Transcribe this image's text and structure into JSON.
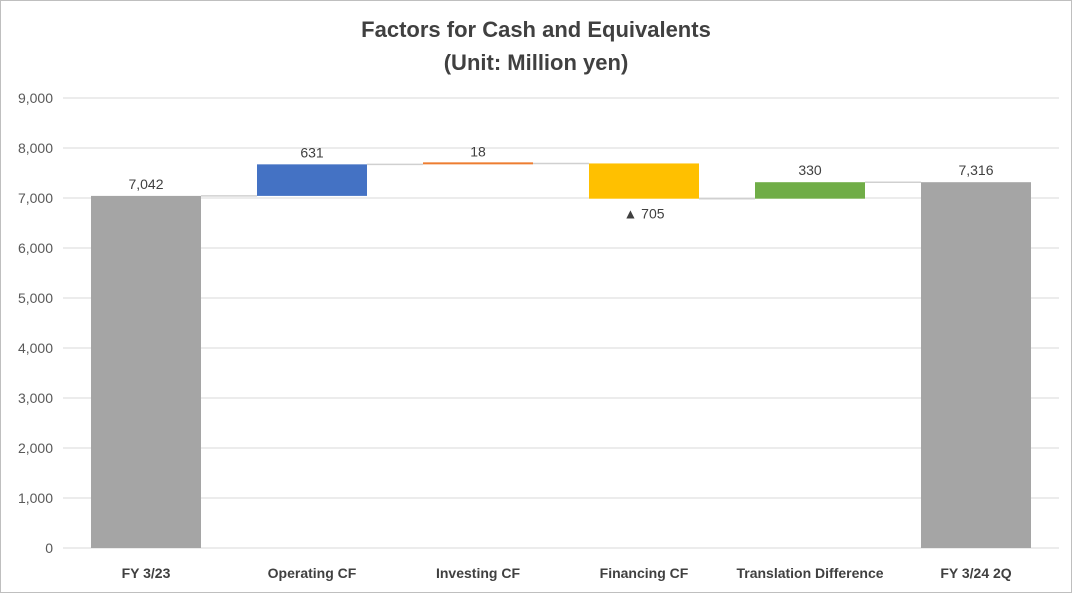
{
  "chart_data": {
    "type": "bar",
    "variant": "waterfall",
    "title": "Factors for Cash and Equivalents",
    "subtitle": "(Unit: Million yen)",
    "categories": [
      "FY 3/23",
      "Operating CF",
      "Investing CF",
      "Financing CF",
      "Translation Difference",
      "FY 3/24 2Q"
    ],
    "ylim": [
      0,
      9000
    ],
    "yticks": [
      0,
      1000,
      2000,
      3000,
      4000,
      5000,
      6000,
      7000,
      8000,
      9000
    ],
    "ytick_labels": [
      "0",
      "1,000",
      "2,000",
      "3,000",
      "4,000",
      "5,000",
      "6,000",
      "7,000",
      "8,000",
      "9,000"
    ],
    "grid": true,
    "bars": [
      {
        "category": "FY 3/23",
        "kind": "total",
        "start": 0,
        "end": 7042,
        "label": "7,042",
        "label_position": "above",
        "color": "#a5a5a5"
      },
      {
        "category": "Operating CF",
        "kind": "increase",
        "start": 7042,
        "end": 7673,
        "label": "631",
        "label_position": "above",
        "color": "#4472c4"
      },
      {
        "category": "Investing CF",
        "kind": "increase",
        "start": 7673,
        "end": 7691,
        "label": "18",
        "label_position": "above",
        "color": "#ed7d31"
      },
      {
        "category": "Financing CF",
        "kind": "decrease",
        "start": 7691,
        "end": 6986,
        "label": "▲ 705",
        "label_position": "below",
        "color": "#ffc000"
      },
      {
        "category": "Translation Difference",
        "kind": "increase",
        "start": 6986,
        "end": 7316,
        "label": "330",
        "label_position": "above",
        "color": "#70ad47"
      },
      {
        "category": "FY 3/24 2Q",
        "kind": "total",
        "start": 0,
        "end": 7316,
        "label": "7,316",
        "label_position": "above",
        "color": "#a5a5a5"
      }
    ],
    "colors": {
      "grid": "#d9d9d9",
      "axis_text": "#595959",
      "category_text": "#404040",
      "label_text": "#404040",
      "title_text": "#404040",
      "connector": "#d0d0d0"
    }
  }
}
